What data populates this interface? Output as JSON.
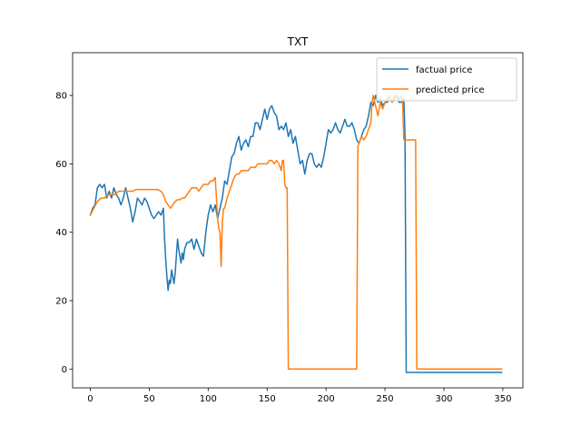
{
  "chart_data": {
    "type": "line",
    "title": "TXT",
    "xlabel": "",
    "ylabel": "",
    "xlim": [
      -15,
      367
    ],
    "ylim": [
      -5.5,
      92.5
    ],
    "xticks": [
      0,
      50,
      100,
      150,
      200,
      250,
      300,
      350
    ],
    "yticks": [
      0,
      20,
      40,
      60,
      80
    ],
    "legend_position": "top-right",
    "grid": false,
    "series": [
      {
        "name": "factual price",
        "color": "#1f77b4",
        "points": [
          [
            0,
            45
          ],
          [
            2,
            47
          ],
          [
            4,
            48
          ],
          [
            6,
            53
          ],
          [
            8,
            54
          ],
          [
            10,
            53
          ],
          [
            12,
            54
          ],
          [
            14,
            50
          ],
          [
            16,
            52
          ],
          [
            18,
            50
          ],
          [
            20,
            53
          ],
          [
            22,
            51
          ],
          [
            24,
            50
          ],
          [
            26,
            48
          ],
          [
            28,
            50
          ],
          [
            30,
            53
          ],
          [
            32,
            50
          ],
          [
            34,
            47
          ],
          [
            36,
            43
          ],
          [
            38,
            46
          ],
          [
            40,
            50
          ],
          [
            42,
            49
          ],
          [
            44,
            48
          ],
          [
            46,
            50
          ],
          [
            48,
            49
          ],
          [
            50,
            47
          ],
          [
            52,
            45
          ],
          [
            54,
            44
          ],
          [
            56,
            45
          ],
          [
            58,
            46
          ],
          [
            60,
            45
          ],
          [
            62,
            47
          ],
          [
            63,
            38
          ],
          [
            64,
            32
          ],
          [
            65,
            27
          ],
          [
            66,
            23
          ],
          [
            67,
            26
          ],
          [
            68,
            25
          ],
          [
            69,
            29
          ],
          [
            70,
            27
          ],
          [
            71,
            25
          ],
          [
            72,
            28
          ],
          [
            73,
            33
          ],
          [
            74,
            38
          ],
          [
            75,
            35
          ],
          [
            76,
            33
          ],
          [
            77,
            31
          ],
          [
            78,
            34
          ],
          [
            79,
            32
          ],
          [
            80,
            35
          ],
          [
            82,
            37
          ],
          [
            84,
            37
          ],
          [
            86,
            38
          ],
          [
            88,
            35
          ],
          [
            90,
            38
          ],
          [
            92,
            36
          ],
          [
            94,
            34
          ],
          [
            96,
            33
          ],
          [
            98,
            40
          ],
          [
            100,
            45
          ],
          [
            102,
            48
          ],
          [
            104,
            46
          ],
          [
            106,
            48
          ],
          [
            108,
            44
          ],
          [
            110,
            47
          ],
          [
            112,
            50
          ],
          [
            114,
            55
          ],
          [
            116,
            54
          ],
          [
            118,
            58
          ],
          [
            120,
            62
          ],
          [
            122,
            63
          ],
          [
            124,
            66
          ],
          [
            126,
            68
          ],
          [
            128,
            64
          ],
          [
            130,
            66
          ],
          [
            132,
            67
          ],
          [
            134,
            65
          ],
          [
            136,
            68
          ],
          [
            138,
            68
          ],
          [
            140,
            72
          ],
          [
            142,
            72
          ],
          [
            144,
            70
          ],
          [
            146,
            73
          ],
          [
            148,
            76
          ],
          [
            150,
            73
          ],
          [
            152,
            76
          ],
          [
            154,
            77
          ],
          [
            156,
            75
          ],
          [
            158,
            74
          ],
          [
            160,
            70
          ],
          [
            162,
            71
          ],
          [
            164,
            70
          ],
          [
            166,
            72
          ],
          [
            168,
            68
          ],
          [
            170,
            70
          ],
          [
            172,
            66
          ],
          [
            174,
            68
          ],
          [
            176,
            64
          ],
          [
            178,
            60
          ],
          [
            180,
            61
          ],
          [
            182,
            57
          ],
          [
            184,
            61
          ],
          [
            186,
            63
          ],
          [
            188,
            63
          ],
          [
            190,
            60
          ],
          [
            192,
            59
          ],
          [
            194,
            60
          ],
          [
            196,
            59
          ],
          [
            198,
            62
          ],
          [
            200,
            66
          ],
          [
            202,
            70
          ],
          [
            204,
            69
          ],
          [
            206,
            70
          ],
          [
            208,
            72
          ],
          [
            210,
            70
          ],
          [
            212,
            69
          ],
          [
            214,
            71
          ],
          [
            216,
            73
          ],
          [
            218,
            71
          ],
          [
            220,
            71
          ],
          [
            222,
            72
          ],
          [
            224,
            70
          ],
          [
            226,
            67
          ],
          [
            228,
            66
          ],
          [
            230,
            68
          ],
          [
            232,
            70
          ],
          [
            234,
            71
          ],
          [
            236,
            74
          ],
          [
            238,
            78
          ],
          [
            240,
            77
          ],
          [
            242,
            80
          ],
          [
            244,
            78
          ],
          [
            246,
            79
          ],
          [
            248,
            77
          ],
          [
            250,
            78
          ],
          [
            252,
            78
          ],
          [
            254,
            80
          ],
          [
            256,
            78
          ],
          [
            258,
            79
          ],
          [
            260,
            80
          ],
          [
            262,
            78
          ],
          [
            264,
            78
          ],
          [
            266,
            79
          ],
          [
            267,
            68
          ],
          [
            268,
            -1
          ],
          [
            275,
            -1
          ],
          [
            300,
            -1
          ],
          [
            325,
            -1
          ],
          [
            349,
            -1
          ]
        ]
      },
      {
        "name": "predicted price",
        "color": "#ff7f0e",
        "points": [
          [
            0,
            45
          ],
          [
            3,
            47
          ],
          [
            6,
            49
          ],
          [
            9,
            50
          ],
          [
            12,
            50
          ],
          [
            15,
            51
          ],
          [
            18,
            51
          ],
          [
            21,
            51
          ],
          [
            24,
            52
          ],
          [
            27,
            52
          ],
          [
            30,
            52
          ],
          [
            33,
            52
          ],
          [
            36,
            52
          ],
          [
            39,
            52.5
          ],
          [
            42,
            52.5
          ],
          [
            45,
            52.5
          ],
          [
            48,
            52.5
          ],
          [
            51,
            52.5
          ],
          [
            54,
            52.5
          ],
          [
            57,
            52.5
          ],
          [
            60,
            52
          ],
          [
            62,
            51
          ],
          [
            64,
            49
          ],
          [
            66,
            48
          ],
          [
            68,
            47
          ],
          [
            70,
            48
          ],
          [
            72,
            49
          ],
          [
            74,
            49.5
          ],
          [
            76,
            49.5
          ],
          [
            78,
            50
          ],
          [
            80,
            50
          ],
          [
            82,
            51
          ],
          [
            84,
            52
          ],
          [
            86,
            53
          ],
          [
            88,
            53
          ],
          [
            90,
            53
          ],
          [
            92,
            52
          ],
          [
            94,
            53
          ],
          [
            96,
            54
          ],
          [
            98,
            54
          ],
          [
            100,
            54
          ],
          [
            102,
            55
          ],
          [
            104,
            55
          ],
          [
            106,
            56
          ],
          [
            107,
            50
          ],
          [
            108,
            44
          ],
          [
            109,
            41
          ],
          [
            110,
            40
          ],
          [
            111,
            30
          ],
          [
            112,
            43
          ],
          [
            113,
            47
          ],
          [
            114,
            47
          ],
          [
            116,
            50
          ],
          [
            118,
            52
          ],
          [
            120,
            54
          ],
          [
            122,
            56
          ],
          [
            124,
            57
          ],
          [
            126,
            57
          ],
          [
            128,
            58
          ],
          [
            130,
            58
          ],
          [
            132,
            58
          ],
          [
            134,
            58
          ],
          [
            136,
            59
          ],
          [
            138,
            59
          ],
          [
            140,
            59
          ],
          [
            142,
            60
          ],
          [
            144,
            60
          ],
          [
            146,
            60
          ],
          [
            148,
            60
          ],
          [
            150,
            60
          ],
          [
            152,
            61
          ],
          [
            154,
            61
          ],
          [
            156,
            60
          ],
          [
            158,
            61
          ],
          [
            160,
            60
          ],
          [
            162,
            58
          ],
          [
            163,
            61
          ],
          [
            164,
            61
          ],
          [
            165,
            54
          ],
          [
            166,
            53
          ],
          [
            167,
            53
          ],
          [
            168,
            0
          ],
          [
            170,
            0
          ],
          [
            180,
            0
          ],
          [
            190,
            0
          ],
          [
            200,
            0
          ],
          [
            210,
            0
          ],
          [
            220,
            0
          ],
          [
            226,
            0
          ],
          [
            227,
            65
          ],
          [
            228,
            66
          ],
          [
            230,
            68
          ],
          [
            232,
            67
          ],
          [
            234,
            68
          ],
          [
            236,
            70
          ],
          [
            238,
            72
          ],
          [
            239,
            78
          ],
          [
            240,
            80
          ],
          [
            242,
            77
          ],
          [
            244,
            74
          ],
          [
            246,
            78
          ],
          [
            248,
            76
          ],
          [
            250,
            78
          ],
          [
            252,
            79
          ],
          [
            254,
            80
          ],
          [
            256,
            78
          ],
          [
            258,
            80
          ],
          [
            260,
            80
          ],
          [
            262,
            79
          ],
          [
            264,
            80
          ],
          [
            265,
            78
          ],
          [
            266,
            67
          ],
          [
            268,
            67
          ],
          [
            270,
            67
          ],
          [
            272,
            67
          ],
          [
            274,
            67
          ],
          [
            276,
            67
          ],
          [
            277,
            0
          ],
          [
            280,
            0
          ],
          [
            300,
            0
          ],
          [
            325,
            0
          ],
          [
            349,
            0
          ]
        ]
      }
    ]
  }
}
